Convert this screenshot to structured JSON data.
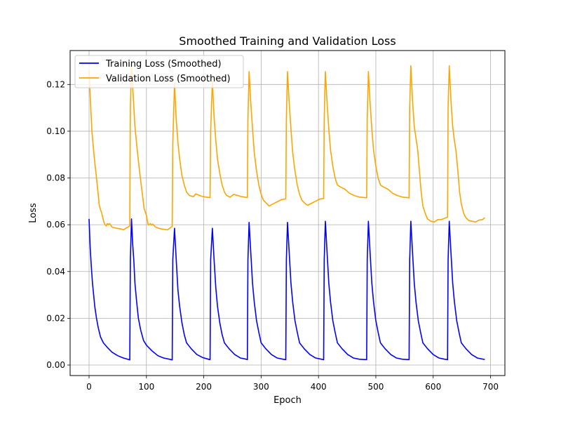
{
  "chart_data": {
    "type": "line",
    "title": "Smoothed Training and Validation Loss",
    "xlabel": "Epoch",
    "ylabel": "Loss",
    "xlim": [
      -33,
      725
    ],
    "ylim": [
      -0.0045,
      0.1345
    ],
    "xticks": [
      0,
      100,
      200,
      300,
      400,
      500,
      600,
      700
    ],
    "yticks": [
      0.0,
      0.02,
      0.04,
      0.06,
      0.08,
      0.1,
      0.12
    ],
    "ytick_labels": [
      "0.00",
      "0.02",
      "0.04",
      "0.06",
      "0.08",
      "0.10",
      "0.12"
    ],
    "grid": true,
    "legend_position": "top-left",
    "series": [
      {
        "name": "Training Loss (Smoothed)",
        "color": "#0000ff",
        "points": [
          [
            0,
            0.0625
          ],
          [
            2,
            0.05
          ],
          [
            4,
            0.042
          ],
          [
            6,
            0.035
          ],
          [
            8,
            0.03
          ],
          [
            10,
            0.025
          ],
          [
            13,
            0.02
          ],
          [
            16,
            0.016
          ],
          [
            20,
            0.012
          ],
          [
            25,
            0.0095
          ],
          [
            32,
            0.0075
          ],
          [
            40,
            0.0055
          ],
          [
            50,
            0.004
          ],
          [
            60,
            0.003
          ],
          [
            70,
            0.0023
          ],
          [
            71,
            0.0022
          ],
          [
            72,
            0.045
          ],
          [
            74,
            0.0625
          ],
          [
            76,
            0.052
          ],
          [
            78,
            0.045
          ],
          [
            80,
            0.035
          ],
          [
            83,
            0.027
          ],
          [
            86,
            0.02
          ],
          [
            90,
            0.015
          ],
          [
            95,
            0.0105
          ],
          [
            100,
            0.0085
          ],
          [
            110,
            0.006
          ],
          [
            120,
            0.004
          ],
          [
            130,
            0.003
          ],
          [
            140,
            0.0025
          ],
          [
            145,
            0.0022
          ],
          [
            146,
            0.045
          ],
          [
            149,
            0.0585
          ],
          [
            152,
            0.045
          ],
          [
            155,
            0.032
          ],
          [
            158,
            0.025
          ],
          [
            162,
            0.018
          ],
          [
            166,
            0.013
          ],
          [
            170,
            0.0095
          ],
          [
            178,
            0.007
          ],
          [
            188,
            0.0045
          ],
          [
            198,
            0.0032
          ],
          [
            208,
            0.0025
          ],
          [
            211,
            0.0023
          ],
          [
            212,
            0.045
          ],
          [
            215,
            0.0585
          ],
          [
            218,
            0.045
          ],
          [
            221,
            0.033
          ],
          [
            224,
            0.025
          ],
          [
            228,
            0.018
          ],
          [
            232,
            0.013
          ],
          [
            236,
            0.0095
          ],
          [
            244,
            0.007
          ],
          [
            254,
            0.0045
          ],
          [
            264,
            0.003
          ],
          [
            274,
            0.0025
          ],
          [
            276,
            0.0023
          ],
          [
            277,
            0.045
          ],
          [
            279,
            0.061
          ],
          [
            282,
            0.048
          ],
          [
            285,
            0.035
          ],
          [
            288,
            0.027
          ],
          [
            292,
            0.019
          ],
          [
            296,
            0.014
          ],
          [
            300,
            0.0095
          ],
          [
            308,
            0.007
          ],
          [
            318,
            0.0045
          ],
          [
            328,
            0.003
          ],
          [
            338,
            0.0025
          ],
          [
            343,
            0.0023
          ],
          [
            344,
            0.045
          ],
          [
            346,
            0.061
          ],
          [
            349,
            0.048
          ],
          [
            352,
            0.035
          ],
          [
            355,
            0.027
          ],
          [
            359,
            0.019
          ],
          [
            363,
            0.014
          ],
          [
            367,
            0.0095
          ],
          [
            375,
            0.007
          ],
          [
            385,
            0.0045
          ],
          [
            395,
            0.003
          ],
          [
            405,
            0.0025
          ],
          [
            409,
            0.0023
          ],
          [
            410,
            0.045
          ],
          [
            412,
            0.0615
          ],
          [
            415,
            0.048
          ],
          [
            418,
            0.035
          ],
          [
            421,
            0.027
          ],
          [
            425,
            0.019
          ],
          [
            429,
            0.014
          ],
          [
            433,
            0.0095
          ],
          [
            441,
            0.007
          ],
          [
            451,
            0.0045
          ],
          [
            461,
            0.003
          ],
          [
            471,
            0.0025
          ],
          [
            484,
            0.0023
          ],
          [
            485,
            0.045
          ],
          [
            487,
            0.0615
          ],
          [
            490,
            0.048
          ],
          [
            493,
            0.035
          ],
          [
            496,
            0.027
          ],
          [
            500,
            0.019
          ],
          [
            504,
            0.014
          ],
          [
            508,
            0.0095
          ],
          [
            516,
            0.007
          ],
          [
            526,
            0.0045
          ],
          [
            536,
            0.003
          ],
          [
            546,
            0.0025
          ],
          [
            558,
            0.0023
          ],
          [
            559,
            0.045
          ],
          [
            561,
            0.0615
          ],
          [
            564,
            0.048
          ],
          [
            567,
            0.035
          ],
          [
            570,
            0.027
          ],
          [
            574,
            0.019
          ],
          [
            578,
            0.014
          ],
          [
            582,
            0.0095
          ],
          [
            590,
            0.007
          ],
          [
            600,
            0.0045
          ],
          [
            610,
            0.003
          ],
          [
            620,
            0.0025
          ],
          [
            625,
            0.0023
          ],
          [
            626,
            0.045
          ],
          [
            628,
            0.0615
          ],
          [
            631,
            0.048
          ],
          [
            634,
            0.035
          ],
          [
            637,
            0.027
          ],
          [
            641,
            0.019
          ],
          [
            645,
            0.014
          ],
          [
            649,
            0.0095
          ],
          [
            657,
            0.007
          ],
          [
            667,
            0.0045
          ],
          [
            677,
            0.003
          ],
          [
            687,
            0.0025
          ],
          [
            690,
            0.0024
          ]
        ]
      },
      {
        "name": "Validation Loss (Smoothed)",
        "color": "#ffa500",
        "points": [
          [
            0,
            0.126
          ],
          [
            2,
            0.115
          ],
          [
            5,
            0.1
          ],
          [
            9,
            0.089
          ],
          [
            13,
            0.08
          ],
          [
            18,
            0.068
          ],
          [
            22,
            0.065
          ],
          [
            26,
            0.061
          ],
          [
            28,
            0.06
          ],
          [
            30,
            0.0595
          ],
          [
            32,
            0.0605
          ],
          [
            34,
            0.06
          ],
          [
            36,
            0.0605
          ],
          [
            40,
            0.059
          ],
          [
            48,
            0.0585
          ],
          [
            56,
            0.0582
          ],
          [
            60,
            0.0578
          ],
          [
            64,
            0.0585
          ],
          [
            68,
            0.059
          ],
          [
            71,
            0.0595
          ],
          [
            72,
            0.11
          ],
          [
            74,
            0.128
          ],
          [
            77,
            0.115
          ],
          [
            80,
            0.102
          ],
          [
            84,
            0.092
          ],
          [
            88,
            0.083
          ],
          [
            92,
            0.075
          ],
          [
            96,
            0.067
          ],
          [
            100,
            0.064
          ],
          [
            103,
            0.06
          ],
          [
            105,
            0.06
          ],
          [
            107,
            0.0605
          ],
          [
            109,
            0.0598
          ],
          [
            111,
            0.0603
          ],
          [
            116,
            0.059
          ],
          [
            124,
            0.0583
          ],
          [
            132,
            0.058
          ],
          [
            137,
            0.0578
          ],
          [
            142,
            0.0588
          ],
          [
            145,
            0.0592
          ],
          [
            146,
            0.095
          ],
          [
            149,
            0.1205
          ],
          [
            152,
            0.105
          ],
          [
            155,
            0.095
          ],
          [
            158,
            0.088
          ],
          [
            162,
            0.081
          ],
          [
            166,
            0.077
          ],
          [
            170,
            0.074
          ],
          [
            175,
            0.0725
          ],
          [
            182,
            0.072
          ],
          [
            186,
            0.0732
          ],
          [
            190,
            0.0728
          ],
          [
            196,
            0.0722
          ],
          [
            204,
            0.0718
          ],
          [
            211,
            0.0716
          ],
          [
            212,
            0.1
          ],
          [
            215,
            0.1215
          ],
          [
            218,
            0.106
          ],
          [
            221,
            0.096
          ],
          [
            224,
            0.088
          ],
          [
            228,
            0.082
          ],
          [
            232,
            0.077
          ],
          [
            236,
            0.074
          ],
          [
            240,
            0.0725
          ],
          [
            246,
            0.0718
          ],
          [
            252,
            0.073
          ],
          [
            258,
            0.0726
          ],
          [
            266,
            0.072
          ],
          [
            272,
            0.0718
          ],
          [
            276,
            0.0716
          ],
          [
            277,
            0.105
          ],
          [
            279,
            0.1255
          ],
          [
            282,
            0.112
          ],
          [
            285,
            0.101
          ],
          [
            288,
            0.091
          ],
          [
            292,
            0.083
          ],
          [
            296,
            0.077
          ],
          [
            300,
            0.073
          ],
          [
            304,
            0.0705
          ],
          [
            310,
            0.069
          ],
          [
            314,
            0.068
          ],
          [
            320,
            0.0688
          ],
          [
            328,
            0.0698
          ],
          [
            336,
            0.0708
          ],
          [
            342,
            0.071
          ],
          [
            343,
            0.0712
          ],
          [
            344,
            0.105
          ],
          [
            346,
            0.1255
          ],
          [
            349,
            0.112
          ],
          [
            352,
            0.101
          ],
          [
            355,
            0.091
          ],
          [
            359,
            0.083
          ],
          [
            363,
            0.077
          ],
          [
            367,
            0.073
          ],
          [
            371,
            0.0705
          ],
          [
            377,
            0.069
          ],
          [
            381,
            0.0683
          ],
          [
            388,
            0.0692
          ],
          [
            396,
            0.0702
          ],
          [
            402,
            0.071
          ],
          [
            409,
            0.0712
          ],
          [
            410,
            0.105
          ],
          [
            412,
            0.1255
          ],
          [
            415,
            0.112
          ],
          [
            418,
            0.101
          ],
          [
            421,
            0.092
          ],
          [
            425,
            0.085
          ],
          [
            429,
            0.08
          ],
          [
            433,
            0.077
          ],
          [
            438,
            0.0762
          ],
          [
            446,
            0.0752
          ],
          [
            454,
            0.0735
          ],
          [
            462,
            0.0725
          ],
          [
            472,
            0.0718
          ],
          [
            484,
            0.0715
          ],
          [
            485,
            0.105
          ],
          [
            487,
            0.1255
          ],
          [
            490,
            0.112
          ],
          [
            493,
            0.101
          ],
          [
            496,
            0.092
          ],
          [
            500,
            0.085
          ],
          [
            504,
            0.08
          ],
          [
            508,
            0.077
          ],
          [
            513,
            0.0762
          ],
          [
            521,
            0.0752
          ],
          [
            529,
            0.0735
          ],
          [
            537,
            0.0725
          ],
          [
            547,
            0.0718
          ],
          [
            558,
            0.0715
          ],
          [
            559,
            0.11
          ],
          [
            561,
            0.128
          ],
          [
            564,
            0.113
          ],
          [
            567,
            0.102
          ],
          [
            570,
            0.097
          ],
          [
            573,
            0.092
          ],
          [
            576,
            0.083
          ],
          [
            579,
            0.074
          ],
          [
            582,
            0.068
          ],
          [
            586,
            0.065
          ],
          [
            590,
            0.0625
          ],
          [
            596,
            0.0615
          ],
          [
            602,
            0.0612
          ],
          [
            608,
            0.0622
          ],
          [
            614,
            0.0622
          ],
          [
            620,
            0.0628
          ],
          [
            625,
            0.0632
          ],
          [
            626,
            0.11
          ],
          [
            628,
            0.128
          ],
          [
            631,
            0.113
          ],
          [
            634,
            0.102
          ],
          [
            637,
            0.096
          ],
          [
            640,
            0.091
          ],
          [
            643,
            0.083
          ],
          [
            646,
            0.074
          ],
          [
            649,
            0.069
          ],
          [
            653,
            0.065
          ],
          [
            657,
            0.063
          ],
          [
            662,
            0.0618
          ],
          [
            668,
            0.0615
          ],
          [
            674,
            0.0612
          ],
          [
            680,
            0.062
          ],
          [
            686,
            0.0622
          ],
          [
            690,
            0.063
          ]
        ]
      }
    ]
  }
}
